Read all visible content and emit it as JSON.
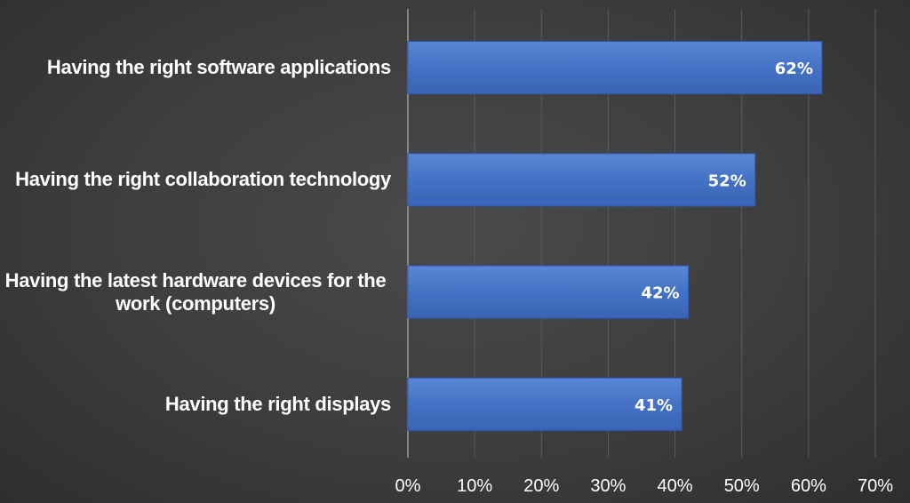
{
  "chart_data": {
    "type": "bar",
    "orientation": "horizontal",
    "categories": [
      "Having the right software applications",
      "Having the right collaboration technology",
      "Having the latest hardware devices for the work (computers)",
      "Having the right displays"
    ],
    "values": [
      62,
      52,
      42,
      41
    ],
    "data_labels": [
      "62%",
      "52%",
      "42%",
      "41%"
    ],
    "xlim": [
      0,
      70
    ],
    "x_ticks": [
      "0%",
      "10%",
      "20%",
      "30%",
      "40%",
      "50%",
      "60%",
      "70%"
    ],
    "title": "",
    "xlabel": "",
    "ylabel": "",
    "grid": "vertical",
    "legend": "none",
    "colors": {
      "bar": "#4472c4",
      "bar_dark": "#2f57b8",
      "grid": "#5c5c5c",
      "axis": "#9a9a9a",
      "text": "#ffffff",
      "background": "#3d3d3d"
    }
  }
}
